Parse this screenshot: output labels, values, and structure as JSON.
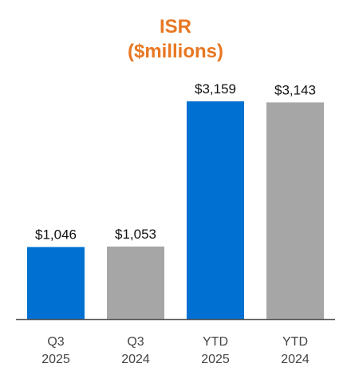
{
  "chart_data": {
    "type": "bar",
    "title_lines": [
      "ISR",
      "($millions)"
    ],
    "categories": [
      [
        "Q3",
        "2025"
      ],
      [
        "Q3",
        "2024"
      ],
      [
        "YTD",
        "2025"
      ],
      [
        "YTD",
        "2024"
      ]
    ],
    "values": [
      1046,
      1053,
      3159,
      3143
    ],
    "value_labels": [
      "$1,046",
      "$1,053",
      "$3,159",
      "$3,143"
    ],
    "ylim": [
      0,
      3159
    ],
    "grid": false,
    "legend": "none",
    "colors": {
      "title": "#E87722",
      "current_year": "#0070D2",
      "prior_year": "#A6A6A6",
      "axis": "#555555"
    },
    "bar_color_keys": [
      "current_year",
      "prior_year",
      "current_year",
      "prior_year"
    ]
  }
}
